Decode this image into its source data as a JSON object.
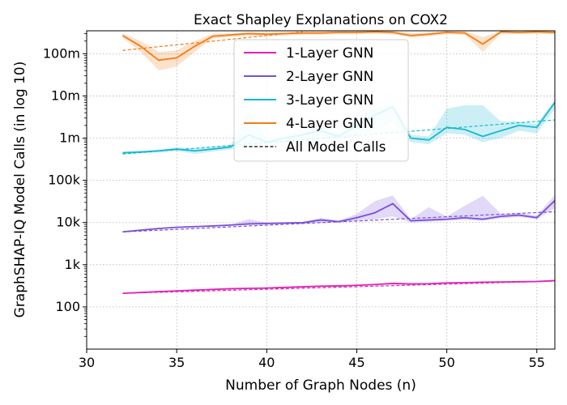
{
  "chart_data": {
    "type": "line",
    "title": "Exact Shapley Explanations on COX2",
    "xlabel": "Number of Graph Nodes (n)",
    "ylabel": "GraphSHAP-IQ Model Calls (in log 10)",
    "xlim": [
      30,
      56
    ],
    "ylim": [
      10,
      350000000
    ],
    "yscale": "log10",
    "grid": true,
    "legend_placement": "top-center",
    "x_ticks": [
      30,
      35,
      40,
      45,
      50,
      55
    ],
    "y_ticks": [
      {
        "value": 100,
        "label": "100"
      },
      {
        "value": 1000,
        "label": "1k"
      },
      {
        "value": 10000,
        "label": "10k"
      },
      {
        "value": 100000,
        "label": "100k"
      },
      {
        "value": 1000000,
        "label": "1m"
      },
      {
        "value": 10000000,
        "label": "10m"
      },
      {
        "value": 100000000,
        "label": "100m"
      }
    ],
    "x": [
      32,
      33,
      34,
      35,
      36,
      37,
      38,
      39,
      40,
      41,
      42,
      43,
      44,
      45,
      46,
      47,
      48,
      49,
      50,
      51,
      52,
      53,
      54,
      55,
      56
    ],
    "series": [
      {
        "name": "1-Layer GNN",
        "color": "#e023b4",
        "values": [
          210,
          220,
          230,
          240,
          250,
          260,
          270,
          275,
          280,
          290,
          300,
          310,
          315,
          325,
          340,
          360,
          350,
          355,
          370,
          375,
          385,
          390,
          395,
          400,
          420
        ],
        "band_low": [
          205,
          215,
          225,
          235,
          245,
          255,
          265,
          270,
          275,
          285,
          295,
          305,
          310,
          320,
          330,
          340,
          340,
          345,
          360,
          365,
          375,
          380,
          385,
          390,
          410
        ],
        "band_high": [
          215,
          225,
          235,
          245,
          255,
          265,
          275,
          280,
          285,
          295,
          305,
          315,
          320,
          330,
          350,
          380,
          360,
          365,
          380,
          385,
          395,
          400,
          405,
          410,
          430
        ],
        "trend": [
          [
            32,
            210
          ],
          [
            56,
            410
          ]
        ]
      },
      {
        "name": "2-Layer GNN",
        "color": "#7b4ed9",
        "values": [
          6000,
          6600,
          7200,
          7700,
          8000,
          8300,
          8700,
          9300,
          9500,
          9700,
          9900,
          11500,
          10500,
          13000,
          17000,
          28000,
          11000,
          11500,
          12000,
          13000,
          12000,
          14000,
          15000,
          13000,
          33000
        ],
        "band_low": [
          5800,
          6400,
          7000,
          7500,
          7800,
          8100,
          8500,
          8600,
          9000,
          9200,
          9400,
          10000,
          10000,
          11000,
          12000,
          14000,
          10000,
          10500,
          11000,
          11500,
          11000,
          12500,
          13500,
          12000,
          22000
        ],
        "band_high": [
          6200,
          6800,
          7400,
          7900,
          8200,
          8500,
          9000,
          12000,
          10000,
          10200,
          10400,
          13000,
          11000,
          16000,
          32000,
          44000,
          12000,
          23000,
          14000,
          25000,
          43000,
          16000,
          17000,
          14500,
          45000
        ],
        "trend": [
          [
            32,
            6000
          ],
          [
            56,
            18000
          ]
        ]
      },
      {
        "name": "3-Layer GNN",
        "color": "#17b8d3",
        "values": [
          450000,
          470000,
          500000,
          550000,
          500000,
          550000,
          620000,
          1200000,
          800000,
          1000000,
          1200000,
          1500000,
          1100000,
          2000000,
          3500000,
          5500000,
          1000000,
          900000,
          1800000,
          1600000,
          1100000,
          1500000,
          2000000,
          1800000,
          7000000
        ],
        "band_low": [
          420000,
          440000,
          460000,
          500000,
          420000,
          480000,
          540000,
          700000,
          640000,
          800000,
          950000,
          1000000,
          880000,
          1200000,
          1500000,
          2500000,
          800000,
          720000,
          1300000,
          1200000,
          800000,
          1000000,
          1500000,
          1300000,
          5000000
        ],
        "band_high": [
          480000,
          500000,
          540000,
          600000,
          580000,
          620000,
          700000,
          4500000,
          950000,
          1200000,
          1500000,
          2000000,
          1300000,
          3500000,
          5000000,
          7000000,
          1200000,
          1100000,
          5000000,
          6000000,
          6000000,
          2500000,
          2500000,
          2200000,
          8000000
        ],
        "trend": [
          [
            32,
            420000
          ],
          [
            56,
            2700000
          ]
        ]
      },
      {
        "name": "4-Layer GNN",
        "color": "#f27c14",
        "values": [
          270000000,
          150000000,
          70000000,
          80000000,
          150000000,
          260000000,
          280000000,
          300000000,
          290000000,
          300000000,
          310000000,
          310000000,
          320000000,
          320000000,
          330000000,
          320000000,
          270000000,
          290000000,
          320000000,
          310000000,
          170000000,
          330000000,
          320000000,
          330000000,
          320000000
        ],
        "band_low": [
          240000000,
          110000000,
          40000000,
          50000000,
          110000000,
          230000000,
          250000000,
          270000000,
          260000000,
          270000000,
          280000000,
          280000000,
          290000000,
          290000000,
          300000000,
          290000000,
          240000000,
          260000000,
          290000000,
          280000000,
          110000000,
          300000000,
          290000000,
          300000000,
          290000000
        ],
        "band_high": [
          300000000,
          200000000,
          110000000,
          120000000,
          200000000,
          300000000,
          300000000,
          330000000,
          320000000,
          330000000,
          340000000,
          340000000,
          345000000,
          345000000,
          345000000,
          345000000,
          310000000,
          320000000,
          345000000,
          340000000,
          250000000,
          345000000,
          345000000,
          345000000,
          345000000
        ],
        "trend": [
          [
            32,
            120000000
          ],
          [
            42,
            330000000
          ]
        ]
      }
    ],
    "legend_entries": [
      {
        "label": "1-Layer GNN",
        "color": "#e023b4",
        "style": "solid"
      },
      {
        "label": "2-Layer GNN",
        "color": "#7b4ed9",
        "style": "solid"
      },
      {
        "label": "3-Layer GNN",
        "color": "#17b8d3",
        "style": "solid"
      },
      {
        "label": "4-Layer GNN",
        "color": "#f27c14",
        "style": "solid"
      },
      {
        "label": "All Model Calls",
        "color": "#000000",
        "style": "dashed"
      }
    ]
  }
}
